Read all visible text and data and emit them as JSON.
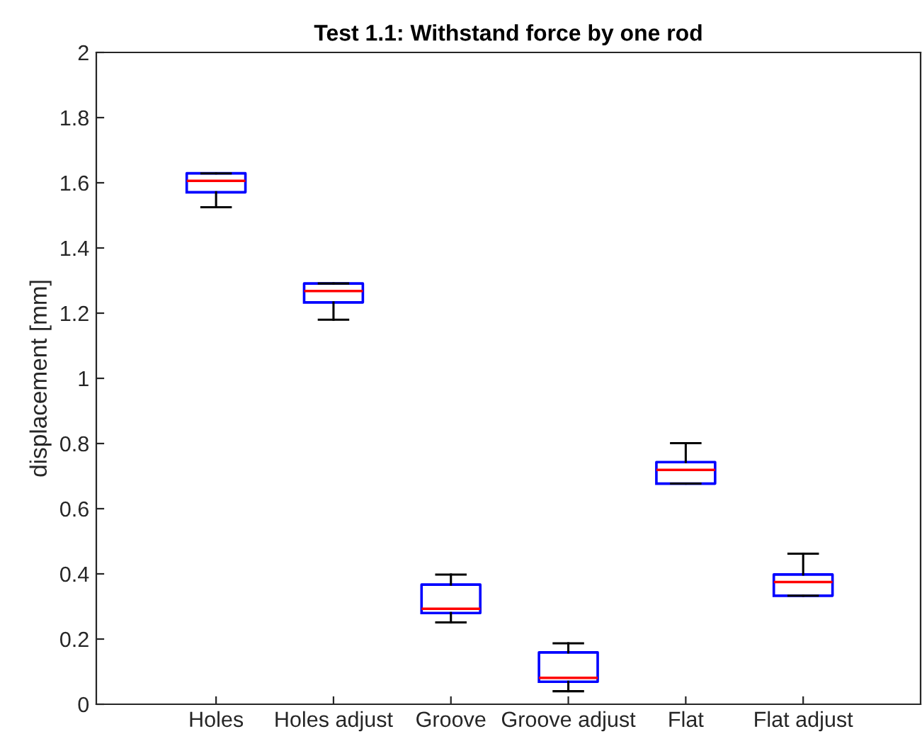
{
  "chart_data": {
    "type": "box",
    "title": "Test 1.1: Withstand force by one rod",
    "ylabel": "displacement [mm]",
    "categories": [
      "Holes",
      "Holes adjust",
      "Groove",
      "Groove adjust",
      "Flat",
      "Flat adjust"
    ],
    "color": "#0000ff",
    "boxes": [
      {
        "low": 1.525,
        "q1": 1.571,
        "median": 1.606,
        "q3": 1.629,
        "high": 1.629
      },
      {
        "low": 1.18,
        "q1": 1.233,
        "median": 1.268,
        "q3": 1.291,
        "high": 1.291
      },
      {
        "low": 0.251,
        "q1": 0.28,
        "median": 0.293,
        "q3": 0.367,
        "high": 0.398
      },
      {
        "low": 0.04,
        "q1": 0.069,
        "median": 0.081,
        "q3": 0.159,
        "high": 0.187
      },
      {
        "low": 0.677,
        "q1": 0.677,
        "median": 0.719,
        "q3": 0.743,
        "high": 0.801
      },
      {
        "low": 0.333,
        "q1": 0.333,
        "median": 0.375,
        "q3": 0.398,
        "high": 0.462
      }
    ],
    "ylim": [
      0,
      2
    ],
    "yticks": [
      0,
      0.2,
      0.4,
      0.6,
      0.8,
      1,
      1.2,
      1.4,
      1.6,
      1.8,
      2
    ],
    "grid": false
  }
}
